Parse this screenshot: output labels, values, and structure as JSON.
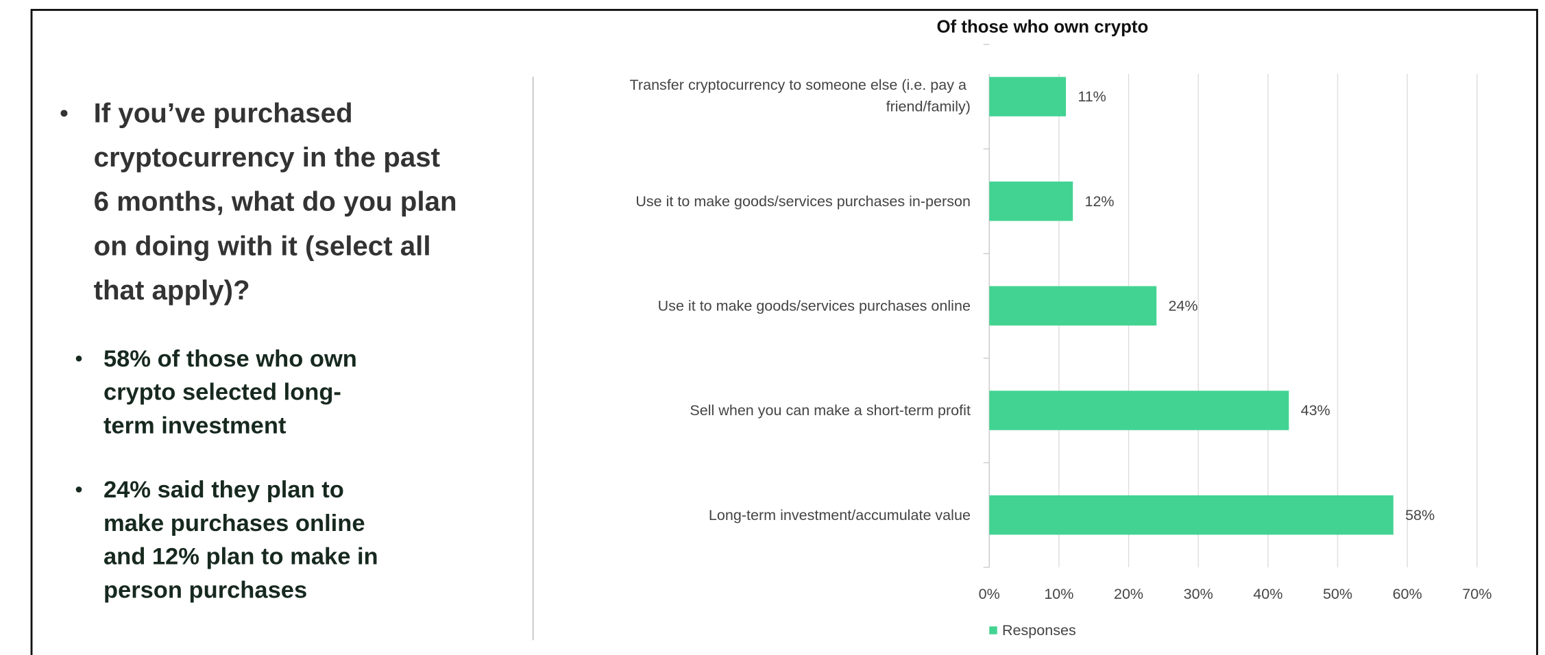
{
  "question": [
    "If you’ve purchased",
    "cryptocurrency in the past",
    "6 months, what do you plan",
    "on doing with it (select all",
    "that apply)?"
  ],
  "findings": [
    [
      "58% of those who own",
      "crypto selected long-",
      "term investment"
    ],
    [
      "24% said they plan to",
      "make purchases online",
      "and 12% plan to make in",
      "person purchases"
    ]
  ],
  "chart_data": {
    "type": "hbar",
    "title": "Of those who own crypto",
    "categories": [
      "Transfer cryptocurrency to someone else (i.e. pay a friend/family)",
      "Use it to make goods/services purchases in-person",
      "Use it to make goods/services purchases online",
      "Sell when you can make a short-term profit",
      "Long-term investment/accumulate value"
    ],
    "series": [
      {
        "name": "Responses",
        "color": "#42d392",
        "values": [
          11,
          12,
          24,
          43,
          58
        ],
        "value_labels": [
          "11%",
          "12%",
          "24%",
          "43%",
          "58%"
        ]
      }
    ],
    "xlim": [
      0,
      70
    ],
    "xticks": [
      {
        "value": 0,
        "label": "0%"
      },
      {
        "value": 10,
        "label": "10%"
      },
      {
        "value": 20,
        "label": "20%"
      },
      {
        "value": 30,
        "label": "30%"
      },
      {
        "value": 40,
        "label": "40%"
      },
      {
        "value": 50,
        "label": "50%"
      },
      {
        "value": 60,
        "label": "60%"
      },
      {
        "value": 70,
        "label": "70%"
      }
    ],
    "grid": true,
    "legend": "bottom"
  }
}
